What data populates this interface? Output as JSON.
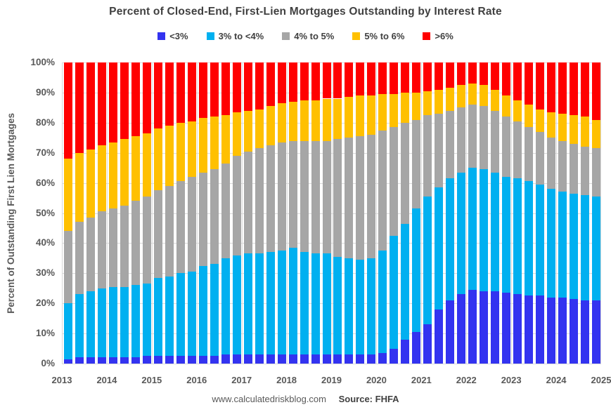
{
  "title": "Percent of Closed-End, First-Lien Mortgages Outstanding by Interest Rate",
  "legend": [
    {
      "label": "<3%",
      "color": "#3333f0"
    },
    {
      "label": "3% to <4%",
      "color": "#00b0f0"
    },
    {
      "label": "4% to 5%",
      "color": "#a6a6a6"
    },
    {
      "label": "5% to 6%",
      "color": "#ffc000"
    },
    {
      "label": ">6%",
      "color": "#ff0000"
    }
  ],
  "y_axis": {
    "title": "Percent of Outstanding First Lien Mortgages",
    "tick_labels": [
      "0%",
      "10%",
      "20%",
      "30%",
      "40%",
      "50%",
      "60%",
      "70%",
      "80%",
      "90%",
      "100%"
    ]
  },
  "x_axis": {
    "year_labels": [
      "2013",
      "2014",
      "2015",
      "2016",
      "2017",
      "2018",
      "2019",
      "2020",
      "2021",
      "2022",
      "2023",
      "2024",
      "2025"
    ]
  },
  "footer": {
    "site": "www.calculatedriskblog.com",
    "source": "Source: FHFA"
  },
  "chart_data": {
    "type": "bar",
    "stacked": true,
    "stack_total": 100,
    "title": "Percent of Closed-End, First-Lien Mortgages Outstanding by Interest Rate",
    "xlabel": "",
    "ylabel": "Percent of Outstanding First Lien Mortgages",
    "ylim": [
      0,
      100
    ],
    "grid": true,
    "legend_position": "top",
    "categories": [
      "2013Q1",
      "2013Q2",
      "2013Q3",
      "2013Q4",
      "2014Q1",
      "2014Q2",
      "2014Q3",
      "2014Q4",
      "2015Q1",
      "2015Q2",
      "2015Q3",
      "2015Q4",
      "2016Q1",
      "2016Q2",
      "2016Q3",
      "2016Q4",
      "2017Q1",
      "2017Q2",
      "2017Q3",
      "2017Q4",
      "2018Q1",
      "2018Q2",
      "2018Q3",
      "2018Q4",
      "2019Q1",
      "2019Q2",
      "2019Q3",
      "2019Q4",
      "2020Q1",
      "2020Q2",
      "2020Q3",
      "2020Q4",
      "2021Q1",
      "2021Q2",
      "2021Q3",
      "2021Q4",
      "2022Q1",
      "2022Q2",
      "2022Q3",
      "2022Q4",
      "2023Q1",
      "2023Q2",
      "2023Q3",
      "2023Q4",
      "2024Q1",
      "2024Q2",
      "2024Q3",
      "2024Q4"
    ],
    "series": [
      {
        "name": "<3%",
        "color": "#3333f0",
        "values": [
          1.5,
          2,
          2,
          2,
          2,
          2,
          2,
          2.5,
          2.5,
          2.5,
          2.5,
          2.5,
          2.5,
          2.5,
          3,
          3,
          3,
          3,
          3,
          3,
          3,
          3,
          3,
          3,
          3,
          3,
          3,
          3,
          3.5,
          5,
          8,
          10.5,
          13,
          18,
          21,
          23,
          24.5,
          24,
          24,
          23.5,
          23,
          22.5,
          22.5,
          22,
          22,
          21.5,
          21,
          21
        ]
      },
      {
        "name": "3% to <4%",
        "color": "#00b0f0",
        "values": [
          18.5,
          21,
          22,
          23,
          23.5,
          23.5,
          24,
          24,
          26,
          26.5,
          27.5,
          28,
          30,
          30.5,
          32,
          33,
          33.5,
          33.5,
          34,
          34.5,
          35.5,
          34,
          33.5,
          33.5,
          32.5,
          32,
          31.5,
          32,
          34,
          37.5,
          38.5,
          41,
          42.5,
          40.5,
          40.5,
          40.5,
          40.5,
          40.5,
          39.5,
          38.5,
          38.5,
          38,
          37,
          36,
          35,
          35,
          35,
          34.5
        ]
      },
      {
        "name": "4% to 5%",
        "color": "#a6a6a6",
        "values": [
          24,
          24,
          24.5,
          25.5,
          26,
          27,
          28,
          29,
          29,
          30,
          30.5,
          31.5,
          31,
          31.5,
          31.5,
          33,
          34,
          35,
          35.5,
          36,
          35.5,
          37,
          37.5,
          37.5,
          39,
          40,
          41,
          41,
          40,
          36,
          33.5,
          29.5,
          27,
          24.5,
          22.5,
          21.5,
          21,
          21,
          20.5,
          20,
          19,
          18,
          17.5,
          17,
          17,
          16.5,
          16,
          16
        ]
      },
      {
        "name": "5% to 6%",
        "color": "#ffc000",
        "values": [
          24,
          23,
          22.5,
          22,
          22,
          22,
          21.5,
          21,
          20.5,
          20,
          19.5,
          18.5,
          18,
          17.5,
          16,
          14.5,
          13.5,
          13,
          13,
          13,
          13,
          13.5,
          13.5,
          14,
          13.5,
          13.5,
          13.5,
          13,
          12,
          11,
          10,
          9,
          8,
          8,
          7.5,
          7.5,
          7,
          7,
          7,
          7,
          7,
          7.5,
          7.5,
          8.5,
          9,
          9.5,
          10,
          9.5
        ]
      },
      {
        "name": ">6%",
        "color": "#ff0000",
        "values": [
          32,
          30,
          29,
          27.5,
          26.5,
          25.5,
          24.5,
          23.5,
          22,
          21,
          20,
          19.5,
          18.5,
          18,
          17.5,
          16.5,
          16,
          15.5,
          14.5,
          13.5,
          13,
          12.5,
          12.5,
          12,
          12,
          11.5,
          11,
          11,
          10.5,
          10.5,
          10,
          10,
          9.5,
          9,
          8.5,
          7.5,
          7,
          7.5,
          9,
          11,
          12.5,
          14,
          15.5,
          16.5,
          17,
          17.5,
          18,
          19
        ]
      }
    ],
    "gridline_color": "#d9d9d9"
  }
}
